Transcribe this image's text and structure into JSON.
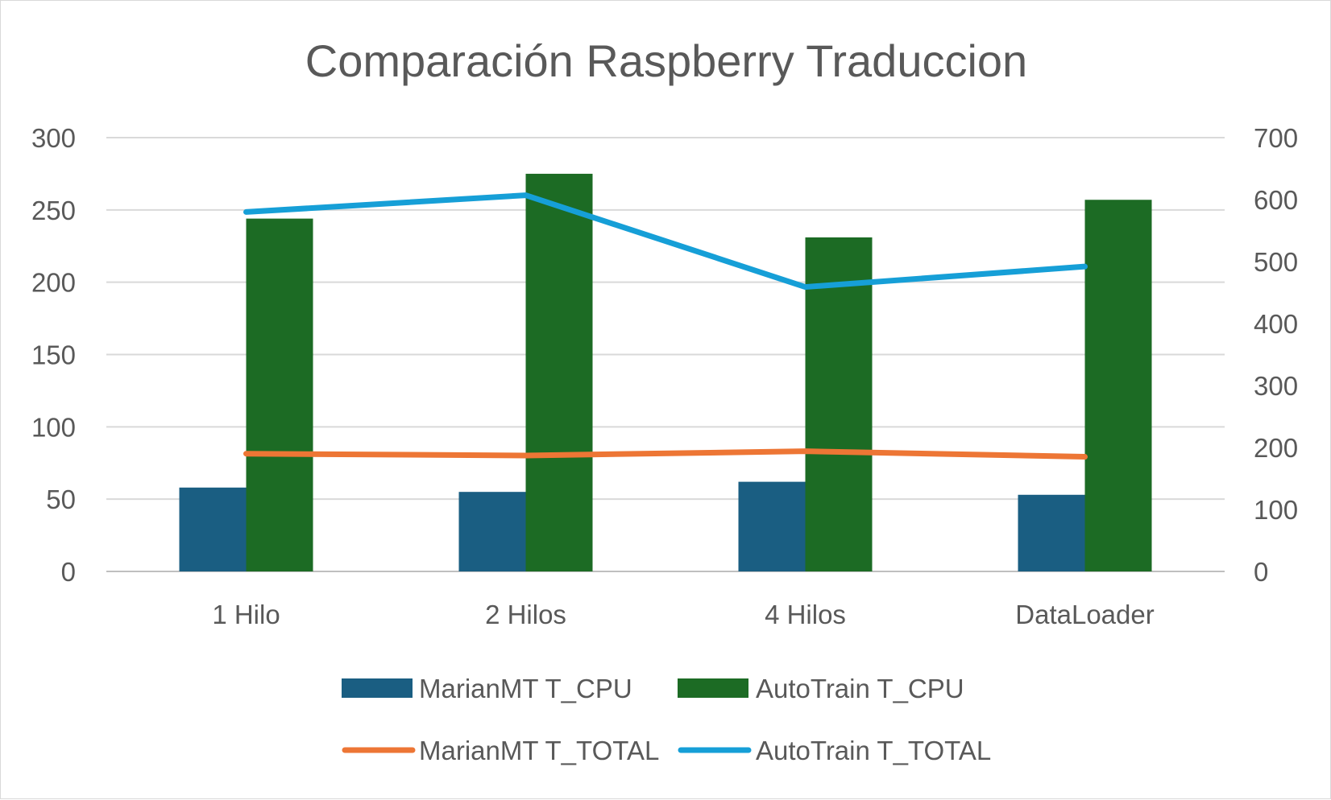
{
  "chart_data": {
    "type": "bar",
    "title": "Comparación Raspberry  Traduccion",
    "categories": [
      "1 Hilo",
      "2 Hilos",
      "4 Hilos",
      "DataLoader"
    ],
    "series": [
      {
        "name": "MarianMT T_CPU",
        "type": "bar",
        "axis": "left",
        "color": "#1a5e82",
        "values": [
          58,
          55,
          62,
          53
        ]
      },
      {
        "name": "AutoTrain T_CPU",
        "type": "bar",
        "axis": "left",
        "color": "#1c6b24",
        "values": [
          244,
          275,
          231,
          257
        ]
      },
      {
        "name": "MarianMT T_TOTAL",
        "type": "line",
        "axis": "right",
        "color": "#ed7635",
        "values": [
          190,
          187,
          194,
          185
        ]
      },
      {
        "name": "AutoTrain T_TOTAL",
        "type": "line",
        "axis": "right",
        "color": "#169fd7",
        "values": [
          580,
          607,
          459,
          492
        ]
      }
    ],
    "y_left": {
      "min": 0,
      "max": 300,
      "ticks": [
        "0",
        "50",
        "100",
        "150",
        "200",
        "250",
        "300"
      ]
    },
    "y_right": {
      "min": 0,
      "max": 700,
      "ticks": [
        "0",
        "100",
        "200",
        "300",
        "400",
        "500",
        "600",
        "700"
      ]
    },
    "grid": true,
    "legend_position": "bottom"
  }
}
